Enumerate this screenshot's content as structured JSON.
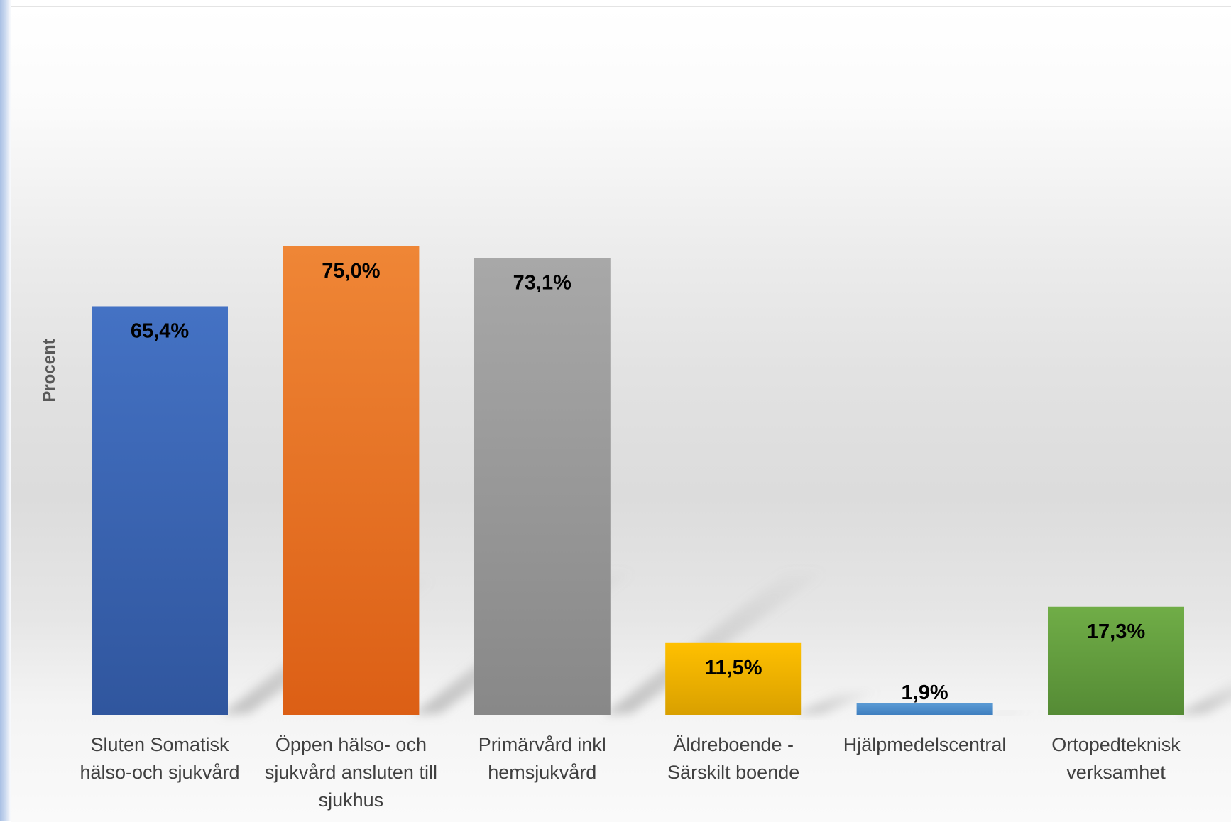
{
  "chart_data": {
    "type": "bar",
    "title": "",
    "xlabel": "",
    "ylabel": "Procent",
    "ylim": [
      0,
      100
    ],
    "grid": false,
    "legend": "none",
    "categories": [
      [
        "Sluten Somatisk",
        "hälso-och sjukvård"
      ],
      [
        "Öppen hälso- och",
        "sjukvård ansluten till",
        "sjukhus"
      ],
      [
        "Primärvård inkl",
        "hemsjukvård"
      ],
      [
        "Äldreboende -",
        "Särskilt boende"
      ],
      [
        "Hjälpmedelscentral"
      ],
      [
        "Ortopedteknisk",
        "verksamhet"
      ]
    ],
    "values": [
      65.4,
      75.0,
      73.1,
      11.5,
      1.9,
      17.3
    ],
    "value_labels": [
      "65,4%",
      "75,0%",
      "73,1%",
      "11,5%",
      "1,9%",
      "17,3%"
    ],
    "colors": [
      [
        "#4472c4",
        "#30569e"
      ],
      [
        "#ef8636",
        "#dc5f15"
      ],
      [
        "#a8a8a8",
        "#888888"
      ],
      [
        "#ffc000",
        "#d9a000"
      ],
      [
        "#5b9bd5",
        "#3f7fbf"
      ],
      [
        "#70ad47",
        "#558b35"
      ]
    ]
  }
}
